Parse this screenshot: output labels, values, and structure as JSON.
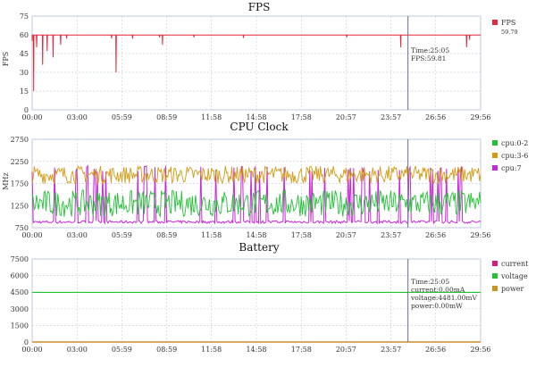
{
  "chart_data": [
    {
      "type": "line",
      "title": "FPS",
      "xlabel": "",
      "ylabel": "FPS",
      "x_ticks": [
        "00:00",
        "03:00",
        "05:59",
        "08:59",
        "11:58",
        "14:58",
        "17:58",
        "20:57",
        "23:57",
        "26:56",
        "29:56"
      ],
      "y_ticks": [
        "0",
        "15",
        "30",
        "45",
        "60",
        "75"
      ],
      "ylim": [
        0,
        75
      ],
      "grid": true,
      "legend_position": "right",
      "series": [
        {
          "name": "FPS",
          "color": "#e8283c",
          "legend_value": "59.79",
          "baseline": 59.8,
          "dips": [
            [
              0.0,
              55
            ],
            [
              0.1,
              15
            ],
            [
              0.3,
              50
            ],
            [
              0.7,
              36
            ],
            [
              1.0,
              47
            ],
            [
              1.4,
              42
            ],
            [
              1.9,
              52
            ],
            [
              2.3,
              57
            ],
            [
              5.3,
              57
            ],
            [
              5.6,
              30
            ],
            [
              6.7,
              57
            ],
            [
              8.5,
              58
            ],
            [
              8.7,
              52
            ],
            [
              10.8,
              58
            ],
            [
              14.1,
              57.5
            ],
            [
              21.0,
              58
            ],
            [
              24.6,
              50
            ],
            [
              29.0,
              50
            ],
            [
              29.2,
              56
            ]
          ]
        }
      ],
      "cursor": {
        "x": "25:05",
        "lines": [
          "Time:25:05",
          "FPS:59.81"
        ]
      }
    },
    {
      "type": "line",
      "title": "CPU Clock",
      "xlabel": "",
      "ylabel": "MHz",
      "x_ticks": [
        "00:00",
        "03:00",
        "05:59",
        "08:59",
        "11:58",
        "14:58",
        "17:58",
        "20:57",
        "23:57",
        "26:56",
        "29:56"
      ],
      "y_ticks": [
        "750",
        "1250",
        "1750",
        "2250",
        "2750"
      ],
      "ylim": [
        750,
        2750
      ],
      "grid": true,
      "legend_position": "right",
      "series": [
        {
          "name": "cpu:0-2",
          "color": "#22c234",
          "range_mhz": [
            1000,
            1600
          ]
        },
        {
          "name": "cpu:3-6",
          "color": "#d49a12",
          "range_mhz": [
            1750,
            2150
          ]
        },
        {
          "name": "cpu:7",
          "color": "#c828d8",
          "range_mhz": [
            850,
            2150
          ]
        }
      ],
      "cursor": {
        "x": "25:05"
      }
    },
    {
      "type": "line",
      "title": "Battery",
      "xlabel": "",
      "ylabel": "",
      "x_ticks": [
        "00:00",
        "03:00",
        "05:59",
        "08:59",
        "11:58",
        "14:58",
        "17:58",
        "20:57",
        "23:57",
        "26:56",
        "29:56"
      ],
      "y_ticks": [
        "0",
        "1500",
        "3000",
        "4500",
        "6000",
        "7500"
      ],
      "ylim": [
        0,
        7500
      ],
      "grid": true,
      "legend_position": "right",
      "series": [
        {
          "name": "current",
          "color": "#d81b7a",
          "value": 0
        },
        {
          "name": "voltage",
          "color": "#22c234",
          "value": 4481
        },
        {
          "name": "power",
          "color": "#c8961e",
          "value": 0
        }
      ],
      "cursor": {
        "x": "25:05",
        "lines": [
          "Time:25:05",
          "current:0.00mA",
          "voltage:4481.00mV",
          "power:0.00mW"
        ]
      }
    }
  ]
}
